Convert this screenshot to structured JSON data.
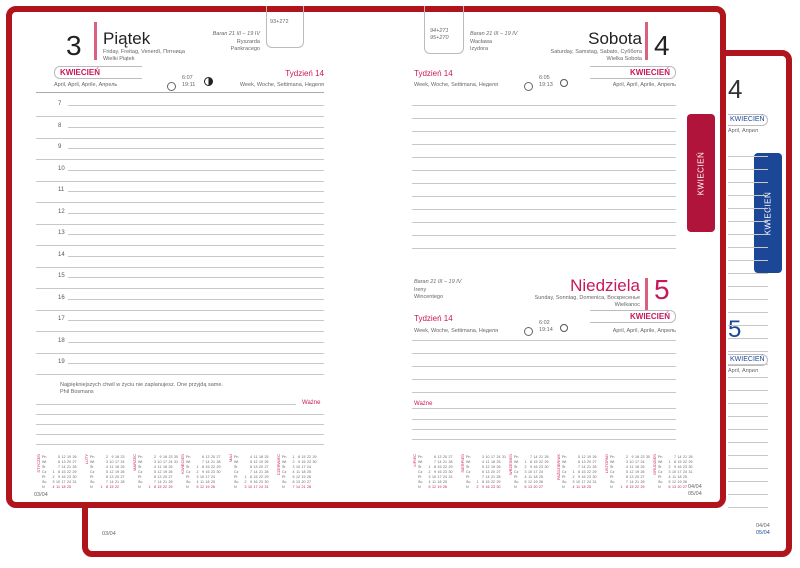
{
  "colors": {
    "frame": "#b0141c",
    "accent": "#c8185a",
    "tab_blue": "#1c4796"
  },
  "back_page": {
    "day_top": "4",
    "day_mid": "5",
    "month_label": "KWIECIEŃ",
    "months_sub": "April, Април",
    "date_codes": [
      "04/04",
      "05/04"
    ],
    "page_code": "03/04",
    "tab_label": "KWIECIEŃ"
  },
  "left_page": {
    "day_number": "3",
    "day_name": "Piątek",
    "day_translations": "Friday, Freitag, Venerdì, Пятница",
    "holiday": "Wielki Piątek",
    "zodiac": "Baran 21 III – 19 IV",
    "namedays": [
      "Ryszarda",
      "Pankracego"
    ],
    "day_count": "93+272",
    "month": "KWIECIEŃ",
    "month_translations": "April, April, Aprile, Апрель",
    "sunrise": "6:07",
    "sunset": "19:11",
    "moon_icon": "moon-first-quarter-icon",
    "week": "Tydzień 14",
    "week_translations": "Week, Woche, Settimana, Неделя",
    "hours": [
      "7",
      "8",
      "9",
      "10",
      "11",
      "12",
      "13",
      "14",
      "15",
      "16",
      "17",
      "18",
      "19"
    ],
    "quote": "Najpiękniejszych chwil w życiu nie zaplanujesz. One przyjdą same.",
    "quote_author": "Phil Bosmans",
    "important_label": "Ważne",
    "page_code": "03/04",
    "calendars": [
      {
        "month": "STYCZEŃ",
        "start": 3,
        "days": 31
      },
      {
        "month": "LUTY",
        "start": 6,
        "days": 28
      },
      {
        "month": "MARZEC",
        "start": 6,
        "days": 31
      },
      {
        "month": "KWIECIEŃ",
        "start": 2,
        "days": 30
      },
      {
        "month": "MAJ",
        "start": 4,
        "days": 31
      },
      {
        "month": "CZERWIEC",
        "start": 0,
        "days": 30
      }
    ]
  },
  "right_page": {
    "saturday": {
      "day_number": "4",
      "day_name": "Sobota",
      "day_translations": "Saturday, Samstag, Sabato, Суббота",
      "holiday": "Wielka Sobota",
      "zodiac": "Baran 21 III – 19 IV",
      "namedays": [
        "Wacława",
        "Izydora"
      ],
      "day_count": "94+271",
      "day_count_alt": "95+270",
      "week": "Tydzień 14",
      "week_translations": "Week, Woche, Settimana, Неделя",
      "sunrise": "6:05",
      "sunset": "19:13",
      "month": "KWIECIEŃ",
      "month_translations": "April, April, Aprile, Апрель"
    },
    "sunday": {
      "day_number": "5",
      "day_name": "Niedziela",
      "day_translations": "Sunday, Sonntag, Domenica, Воскресенье",
      "holiday": "Wielkanoc",
      "zodiac": "Baran 21 III – 19 IV",
      "namedays": [
        "Ireny",
        "Wincentego"
      ],
      "week": "Tydzień 14",
      "week_translations": "Week, Woche, Settimana, Неделя",
      "sunrise": "6:02",
      "sunset": "19:14",
      "month": "KWIECIEŃ",
      "month_translations": "April, April, Aprile, Апрель"
    },
    "important_label": "Ważne",
    "tab_label": "KWIECIEŃ",
    "date_codes": [
      "04/04",
      "05/04"
    ],
    "calendars": [
      {
        "month": "LIPIEC",
        "start": 2,
        "days": 31
      },
      {
        "month": "SIERPIEŃ",
        "start": 5,
        "days": 31
      },
      {
        "month": "WRZESIEŃ",
        "start": 1,
        "days": 30
      },
      {
        "month": "PAŹDZIERNIK",
        "start": 3,
        "days": 31
      },
      {
        "month": "LISTOPAD",
        "start": 6,
        "days": 30
      },
      {
        "month": "GRUDZIEŃ",
        "start": 1,
        "days": 31
      }
    ]
  },
  "weekday_abbr": [
    "Pn",
    "Wt",
    "Śr",
    "Cz",
    "Pt",
    "So",
    "N"
  ]
}
